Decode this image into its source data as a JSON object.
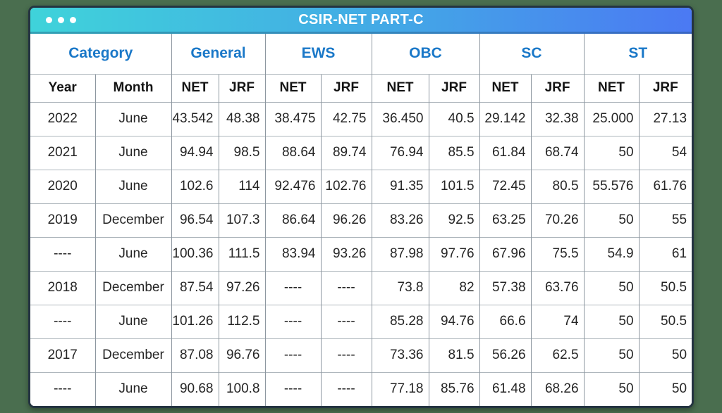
{
  "window": {
    "title": "CSIR-NET PART-C",
    "dot_count": 3
  },
  "colors": {
    "background": "#4a6e4f",
    "titlebar_gradient_left": "#3fd3da",
    "titlebar_gradient_right": "#4b79f3",
    "group_header_text": "#1a78c8",
    "title_text": "#ffffff",
    "data_text": "#252525",
    "card_border": "#243441"
  },
  "chart_data": {
    "type": "table",
    "title": "CSIR-NET PART-C",
    "column_groups": [
      {
        "label": "Category",
        "span": 2
      },
      {
        "label": "General",
        "span": 2
      },
      {
        "label": "EWS",
        "span": 2
      },
      {
        "label": "OBC",
        "span": 2
      },
      {
        "label": "SC",
        "span": 2
      },
      {
        "label": "ST",
        "span": 2
      }
    ],
    "columns": [
      "Year",
      "Month",
      "NET",
      "JRF",
      "NET",
      "JRF",
      "NET",
      "JRF",
      "NET",
      "JRF",
      "NET",
      "JRF"
    ],
    "rows": [
      [
        "2022",
        "June",
        "43.542",
        "48.38",
        "38.475",
        "42.75",
        "36.450",
        "40.5",
        "29.142",
        "32.38",
        "25.000",
        "27.13"
      ],
      [
        "2021",
        "June",
        "94.94",
        "98.5",
        "88.64",
        "89.74",
        "76.94",
        "85.5",
        "61.84",
        "68.74",
        "50",
        "54"
      ],
      [
        "2020",
        "June",
        "102.6",
        "114",
        "92.476",
        "102.76",
        "91.35",
        "101.5",
        "72.45",
        "80.5",
        "55.576",
        "61.76"
      ],
      [
        "2019",
        "December",
        "96.54",
        "107.3",
        "86.64",
        "96.26",
        "83.26",
        "92.5",
        "63.25",
        "70.26",
        "50",
        "55"
      ],
      [
        "----",
        "June",
        "100.36",
        "111.5",
        "83.94",
        "93.26",
        "87.98",
        "97.76",
        "67.96",
        "75.5",
        "54.9",
        "61"
      ],
      [
        "2018",
        "December",
        "87.54",
        "97.26",
        "----",
        "----",
        "73.8",
        "82",
        "57.38",
        "63.76",
        "50",
        "50.5"
      ],
      [
        "----",
        "June",
        "101.26",
        "112.5",
        "----",
        "----",
        "85.28",
        "94.76",
        "66.6",
        "74",
        "50",
        "50.5"
      ],
      [
        "2017",
        "December",
        "87.08",
        "96.76",
        "----",
        "----",
        "73.36",
        "81.5",
        "56.26",
        "62.5",
        "50",
        "50"
      ],
      [
        "----",
        "June",
        "90.68",
        "100.8",
        "----",
        "----",
        "77.18",
        "85.76",
        "61.48",
        "68.26",
        "50",
        "50"
      ]
    ]
  }
}
